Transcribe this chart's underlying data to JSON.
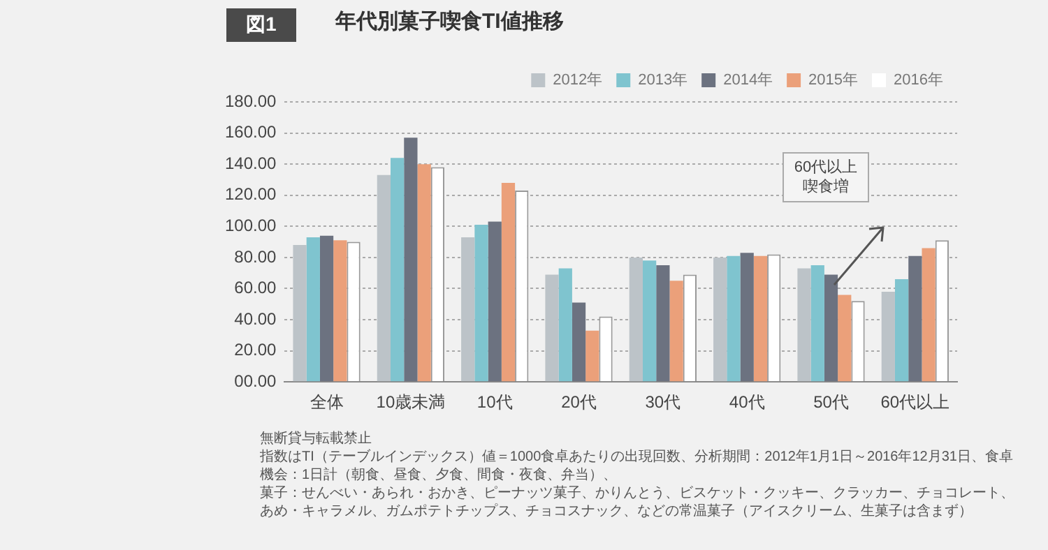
{
  "chart_data": {
    "type": "bar",
    "title": "年代別菓子喫食TI値推移",
    "categories": [
      "全体",
      "10歳未満",
      "10代",
      "20代",
      "30代",
      "40代",
      "50代",
      "60代以上"
    ],
    "series": [
      {
        "name": "2012年",
        "color": "#bcc3c8",
        "values": [
          88,
          133,
          93,
          69,
          80,
          80,
          73,
          58
        ]
      },
      {
        "name": "2013年",
        "color": "#7fc4cf",
        "values": [
          93,
          144,
          101,
          73,
          78,
          81,
          75,
          66
        ]
      },
      {
        "name": "2014年",
        "color": "#6c7280",
        "values": [
          94,
          157,
          103,
          51,
          75,
          83,
          69,
          81
        ]
      },
      {
        "name": "2015年",
        "color": "#eba07a",
        "values": [
          91,
          140,
          128,
          33,
          65,
          81,
          56,
          86
        ]
      },
      {
        "name": "2016年",
        "color": "#ffffff",
        "values": [
          90,
          138,
          123,
          42,
          69,
          82,
          52,
          91
        ]
      }
    ],
    "ylim": [
      0,
      180
    ],
    "yticks": [
      {
        "value": 0,
        "label": "00.00"
      },
      {
        "value": 20,
        "label": "20.00"
      },
      {
        "value": 40,
        "label": "40.00"
      },
      {
        "value": 60,
        "label": "60.00"
      },
      {
        "value": 80,
        "label": "80.00"
      },
      {
        "value": 100,
        "label": "100.00"
      },
      {
        "value": 120,
        "label": "120.00"
      },
      {
        "value": 140,
        "label": "140.00"
      },
      {
        "value": 160,
        "label": "160.00"
      },
      {
        "value": 180,
        "label": "180.00"
      }
    ],
    "grid": "y",
    "legend": "top right",
    "annotations": [
      "図1",
      "60代以上",
      "喫食増",
      "無断貸与転載禁止",
      "指数はTI（テーブルインデックス）値＝1000食卓あたりの出現回数、分析期間：2012年1月1日～2016年12月31日、食卓機会：1日計（朝食、昼食、夕食、間食・夜食、弁当）、",
      "菓子：せんべい・あられ・おかき、ピーナッツ菓子、かりんとう、ビスケット・クッキー、クラッカー、チョコレート、あめ・キャラメル、ガムポテトチップス、チョコスナック、などの常温菓子（アイスクリーム、生菓子は含まず）"
    ]
  }
}
